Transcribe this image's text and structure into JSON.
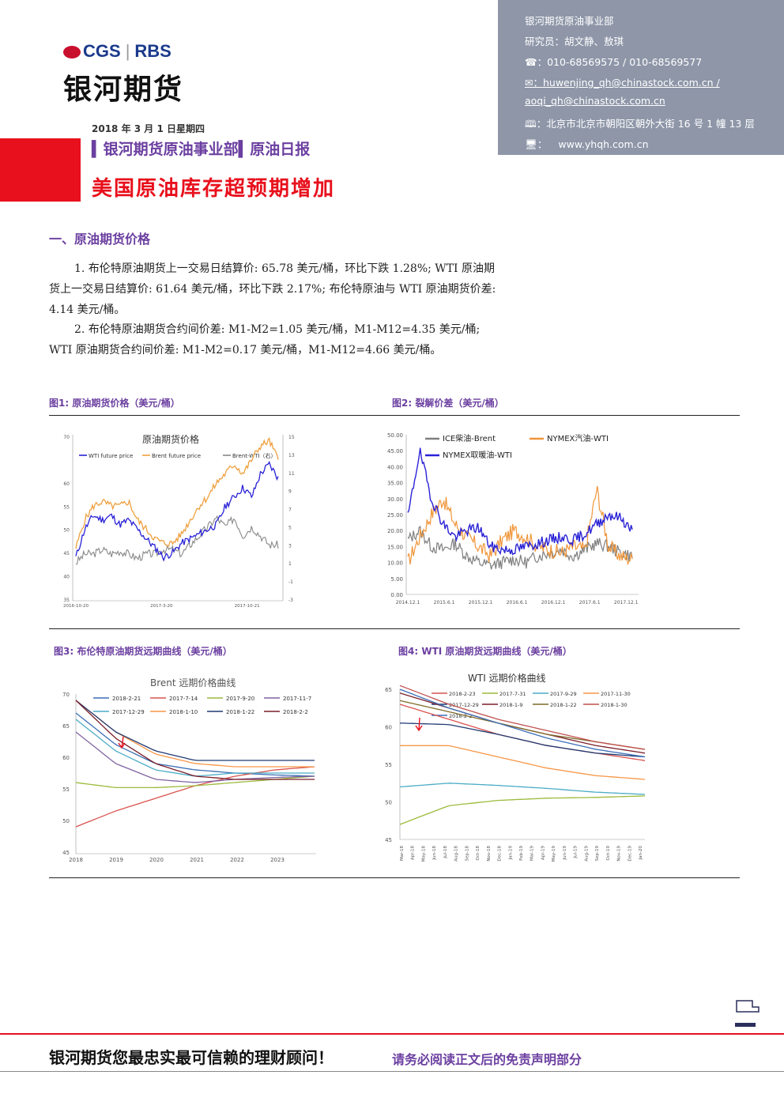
{
  "header": {
    "logo_cgs": "CGS",
    "logo_rbs": "RBS",
    "brand": "银河期货",
    "date": "2018 年 3 月 1 日星期四",
    "dept": "▍银河期货原油事业部▍原油日报",
    "title": "美国原油库存超预期增加"
  },
  "info": {
    "dept": "银河期货原油事业部",
    "analysts": "研究员：胡文静、敖琪",
    "phone": "☎：010-68569575 / 010-68569577",
    "email1": "✉：huwenjing_qh@chinastock.com.cn /",
    "email2": "aoqi_qh@chinastock.com.cn",
    "address": "🕮：北京市北京市朝阳区朝外大街 16 号 1 幢 13 层",
    "web_icon": "🖥：",
    "web": "www.yhqh.com.cn"
  },
  "section1": {
    "heading": "一、原油期货价格",
    "p1": "1. 布伦特原油期货上一交易日结算价: 65.78 美元/桶，环比下跌 1.28%; WTI 原油期货上一交易日结算价: 61.64 美元/桶，环比下跌 2.17%; 布伦特原油与 WTI 原油期货价差: 4.14 美元/桶。",
    "p2": "2. 布伦特原油期货合约间价差: M1-M2=1.05 美元/桶，M1-M12=4.35 美元/桶; WTI 原油期货合约间价差: M1-M2=0.17 美元/桶，M1-M12=4.66 美元/桶。"
  },
  "figures": {
    "fig1_caption": "图1: 原油期货价格（美元/桶）",
    "fig2_caption": "图2: 裂解价差（美元/桶）",
    "fig3_caption": "图3: 布伦特原油期货远期曲线（美元/桶）",
    "fig4_caption": "图4: WTI 原油期货远期曲线（美元/桶）"
  },
  "colors": {
    "wti": "#2a22d6",
    "brent": "#f0a040",
    "spread": "#888888",
    "accent": "#6b3fa0",
    "red": "#e8101c"
  },
  "chart_data": [
    {
      "type": "line",
      "title": "原油期货价格",
      "legend": [
        "WTI future price",
        "Brent future price",
        "Brent-WTI（右）"
      ],
      "x_ticks": [
        "2016-10-20",
        "2017-3-20",
        "2017-10-21"
      ],
      "y_ticks": [
        "35",
        "40",
        "45",
        "50",
        "55",
        "60",
        "70"
      ],
      "y2_ticks": [
        "-3",
        "-1",
        "1",
        "3",
        "5",
        "7",
        "9",
        "11",
        "13",
        "15"
      ],
      "ylim": [
        35,
        70
      ],
      "y2lim": [
        -3,
        15
      ],
      "series": [
        {
          "name": "WTI future price",
          "values": [
            44,
            50,
            53,
            52,
            53,
            51,
            52,
            50,
            48,
            46,
            44,
            45,
            47,
            48,
            49,
            50,
            51,
            55,
            57,
            59,
            57,
            62,
            64,
            61
          ]
        },
        {
          "name": "Brent future price",
          "values": [
            46,
            52,
            55,
            56,
            55,
            55,
            56,
            52,
            50,
            48,
            47,
            47,
            49,
            52,
            55,
            57,
            60,
            62,
            64,
            62,
            65,
            68,
            69,
            65
          ]
        },
        {
          "name": "Brent-WTI（右）",
          "values": [
            1,
            2,
            2,
            2.5,
            2,
            2.3,
            2,
            1.5,
            2,
            2,
            2.5,
            2.5,
            2,
            3,
            4,
            5,
            6,
            5,
            6,
            4,
            5,
            4,
            3,
            3
          ]
        }
      ]
    },
    {
      "type": "line",
      "title": "",
      "legend": [
        "ICE柴油-Brent",
        "NYMEX汽油-WTI",
        "NYMEX取暖油-WTI"
      ],
      "x_ticks": [
        "2014.12.1",
        "2015.6.1",
        "2015.12.1",
        "2016.6.1",
        "2016.12.1",
        "2017.6.1",
        "2017.12.1"
      ],
      "y_ticks": [
        "0.00",
        "5.00",
        "10.00",
        "15.00",
        "20.00",
        "25.00",
        "30.00",
        "35.00",
        "40.00",
        "45.00",
        "50.00"
      ],
      "ylim": [
        0,
        50
      ],
      "series": [
        {
          "name": "ICE柴油-Brent",
          "values": [
            17,
            20,
            15,
            14,
            16,
            12,
            10,
            9,
            10,
            11,
            10,
            12,
            13,
            14,
            12,
            14,
            16,
            15,
            13,
            12
          ]
        },
        {
          "name": "NYMEX汽油-WTI",
          "values": [
            10,
            18,
            25,
            30,
            22,
            18,
            15,
            12,
            17,
            20,
            18,
            15,
            14,
            13,
            15,
            14,
            33,
            15,
            12,
            11
          ]
        },
        {
          "name": "NYMEX取暖油-WTI",
          "values": [
            24,
            45,
            30,
            22,
            18,
            20,
            21,
            15,
            14,
            14,
            15,
            16,
            17,
            18,
            17,
            19,
            22,
            25,
            24,
            20
          ]
        }
      ]
    },
    {
      "type": "line",
      "title": "Brent 远期价格曲线",
      "x_ticks": [
        "2018",
        "2019",
        "2020",
        "2021",
        "2022",
        "2023"
      ],
      "y_ticks": [
        "45",
        "50",
        "55",
        "60",
        "65",
        "70"
      ],
      "ylim": [
        45,
        70
      ],
      "series": [
        {
          "name": "2018-2-21",
          "values": [
            67,
            62,
            59,
            58,
            57.5,
            57.2,
            57
          ]
        },
        {
          "name": "2017-7-14",
          "values": [
            49,
            51.5,
            53.5,
            55.5,
            57,
            58,
            58.5
          ]
        },
        {
          "name": "2017-9-20",
          "values": [
            56,
            55.2,
            55.2,
            55.5,
            56,
            56.5,
            57
          ]
        },
        {
          "name": "2017-11-7",
          "values": [
            64,
            59,
            56.5,
            56,
            56.5,
            56.8,
            57
          ]
        },
        {
          "name": "2017-12-29",
          "values": [
            66,
            61,
            58,
            57,
            57.5,
            57.5,
            57.5
          ]
        },
        {
          "name": "2018-1-10",
          "values": [
            69,
            64,
            60.5,
            59,
            58.5,
            58.5,
            58.5
          ]
        },
        {
          "name": "2018-1-22",
          "values": [
            69,
            64,
            61,
            59.5,
            59.5,
            59.5,
            59.5
          ]
        },
        {
          "name": "2018-2-2",
          "values": [
            69,
            63,
            59,
            57,
            56.5,
            56.5,
            56.5
          ]
        }
      ]
    },
    {
      "type": "line",
      "title": "WTI 远期价格曲线",
      "x_ticks": [
        "Mar-18",
        "Apr-18",
        "May-18",
        "Jun-18",
        "Jul-18",
        "Aug-18",
        "Sep-18",
        "Oct-18",
        "Nov-18",
        "Dec-18",
        "Jan-19",
        "Feb-19",
        "Mar-19",
        "Apr-19",
        "May-19",
        "Jun-19",
        "Jul-19",
        "Aug-19",
        "Sep-19",
        "Oct-19",
        "Nov-19",
        "Dec-19",
        "Jan-20"
      ],
      "y_ticks": [
        "45",
        "50",
        "55",
        "60",
        "65"
      ],
      "ylim": [
        45,
        65
      ],
      "series": [
        {
          "name": "2018-2-23",
          "values": [
            63,
            61,
            59,
            57.5,
            56.5,
            55.5
          ]
        },
        {
          "name": "2017-7-31",
          "values": [
            47,
            49.5,
            50.2,
            50.5,
            50.6,
            50.8
          ]
        },
        {
          "name": "2017-9-29",
          "values": [
            52,
            52.5,
            52.2,
            51.8,
            51.3,
            51
          ]
        },
        {
          "name": "2017-11-30",
          "values": [
            57.5,
            57.5,
            56,
            54.5,
            53.5,
            53
          ]
        },
        {
          "name": "2017-12-29",
          "values": [
            60.5,
            60.3,
            59,
            57.5,
            56.5,
            56
          ]
        },
        {
          "name": "2018-1-9",
          "values": [
            64.5,
            62.5,
            60.5,
            59,
            57.5,
            56.5
          ]
        },
        {
          "name": "2018-1-22",
          "values": [
            63.5,
            62,
            60.5,
            59,
            58,
            57
          ]
        },
        {
          "name": "2018-1-30",
          "values": [
            65.5,
            63,
            61,
            59.5,
            58,
            57
          ]
        },
        {
          "name": "2018-2-2",
          "values": [
            65,
            62.5,
            60.5,
            58.5,
            57,
            56
          ]
        }
      ]
    }
  ]
}
